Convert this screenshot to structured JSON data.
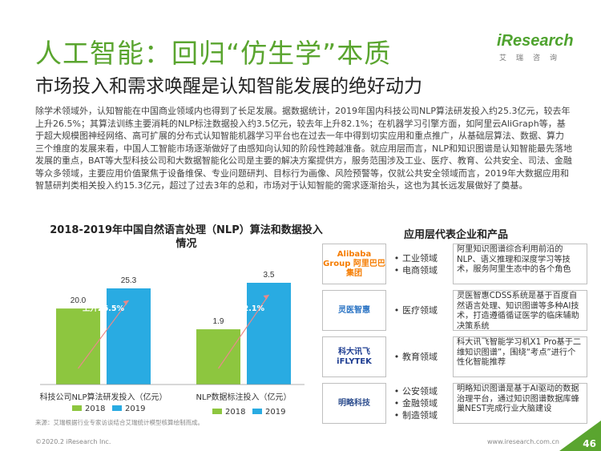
{
  "header": {
    "title": "人工智能：回归“仿生学”本质",
    "subtitle": "市场投入和需求唤醒是认知智能发展的绝好动力",
    "brand": "iResearch",
    "brand_cn": "艾瑞咨询"
  },
  "paragraph": "除学术领域外，认知智能在中国商业领域内也得到了长足发展。据数据统计，2019年国内科技公司NLP算法研发投入约25.3亿元，较去年上升26.5%；其算法训练主要消耗的NLP标注数据投入约3.5亿元，较去年上升82.1%；在机器学习引擎方面，如阿里云AliGraph等，基于超大规模图神经网络、高可扩展的分布式认知智能机器学习平台也在过去一年中得到切实应用和重点推广，从基础层算法、数据、算力三个维度的发展来看，中国人工智能市场逐渐做好了由感知向认知的阶段性跨越准备。就应用层而言，NLP和知识图谱是认知智能最先落地发展的重点，BAT等大型科技公司和大数据智能化公司是主要的解决方案提供方，服务范围涉及工业、医疗、教育、公共安全、司法、金融等众多领域，主要应用价值聚焦于设备维保、专业问题研判、目标行为画像、风险预警等，仅就公共安全领域而言，2019年大数据应用和智慧研判类相关投入约15.3亿元，超过了过去3年的总和，市场对于认知智能的需求逐渐抬头，这也为其长远发展做好了奠基。",
  "chart_data": {
    "type": "bar",
    "title": "2018-2019年中国自然语言处理（NLP）算法和数据投入情况",
    "series": [
      {
        "name": "2018",
        "color": "#8dc63f"
      },
      {
        "name": "2019",
        "color": "#29abe2"
      }
    ],
    "groups": [
      {
        "label": "科技公司NLP算法研发投入（亿元）",
        "values": [
          20.0,
          25.3
        ],
        "value_labels": [
          "20.0",
          "25.3"
        ],
        "growth": "上升26.5%"
      },
      {
        "label": "NLP数据标注投入（亿元）",
        "values": [
          1.9,
          3.5
        ],
        "value_labels": [
          "1.9",
          "3.5"
        ],
        "growth": "上升82.1%"
      }
    ]
  },
  "source": "来源：艾瑞根据行业专家访谈结合艾瑞统计模型核算绘制而成。",
  "right_panel": {
    "title": "应用层代表企业和产品",
    "companies": [
      {
        "name": "Alibaba Group 阿里巴巴集团",
        "logo_color": "#f57c00",
        "fields": [
          "工业领域",
          "电商领域"
        ],
        "desc": "阿里知识图谱综合利用前沿的NLP、语义推理和深度学习等技术，服务阿里生态中的各个角色"
      },
      {
        "name": "灵医智惠",
        "logo_color": "#2b74c4",
        "fields": [
          "医疗领域"
        ],
        "desc": "灵医智惠CDSS系统是基于百度自然语言处理、知识图谱等多种AI技术，打造遵循循证医学的临床辅助决策系统"
      },
      {
        "name": "科大讯飞 iFLYTEK",
        "logo_color": "#1f3e92",
        "fields": [
          "教育领域"
        ],
        "desc": "科大讯飞智能学习机X1 Pro基于二维知识图谱”，围绕“考点”进行个性化智能推荐"
      },
      {
        "name": "明略科技",
        "logo_color": "#2f4f8f",
        "fields": [
          "公安领域",
          "金融领域",
          "制造领域"
        ],
        "desc": "明略知识图谱是基于AI驱动的数据治理平台，通过知识图谱数据库蜂巢NEST完成行业大脑建设"
      }
    ]
  },
  "footer": {
    "copyright": "©2020.2 iResearch Inc.",
    "website": "www.iresearch.com.cn",
    "page": "46"
  }
}
